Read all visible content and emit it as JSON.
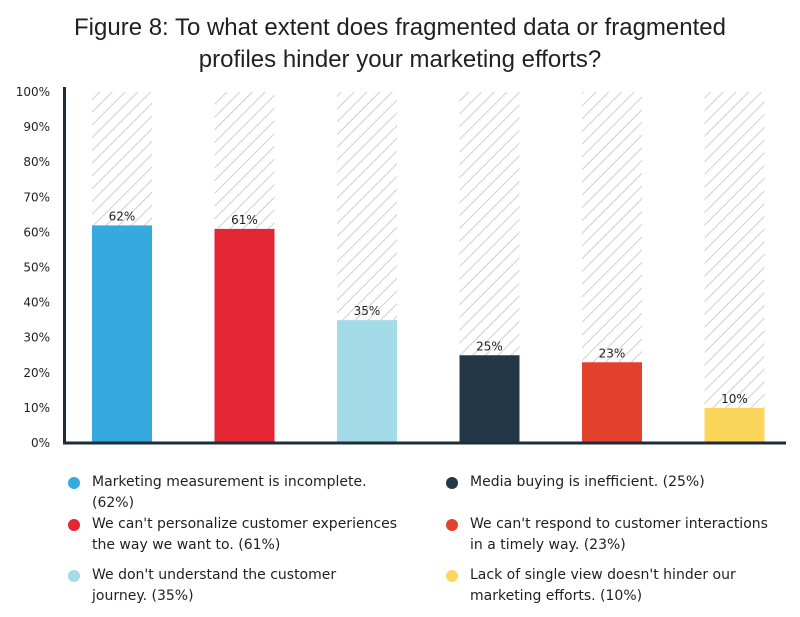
{
  "title": {
    "line1": "Figure 8: To what extent does fragmented data or fragmented",
    "line2": "profiles hinder your marketing efforts?"
  },
  "chart_data": {
    "type": "bar",
    "title": "Figure 8: To what extent does fragmented data or fragmented profiles hinder your marketing efforts?",
    "categories": [
      "Marketing measurement is incomplete.",
      "We can't personalize customer experiences the way we want to.",
      "We don't understand the customer journey.",
      "Media buying is inefficient.",
      "We can't respond to customer interactions in a timely way.",
      "Lack of single view doesn't hinder our marketing efforts."
    ],
    "values": [
      62,
      61,
      35,
      25,
      23,
      10
    ],
    "value_labels": [
      "62%",
      "61%",
      "35%",
      "25%",
      "23%",
      "10%"
    ],
    "colors": [
      "#36a9df",
      "#e32634",
      "#a3dbe8",
      "#233746",
      "#e2422d",
      "#fcd65a"
    ],
    "ylim": [
      0,
      100
    ],
    "yticks": [
      "0%",
      "10%",
      "20%",
      "30%",
      "40%",
      "50%",
      "60%",
      "70%",
      "80%",
      "90%",
      "100%"
    ],
    "xlabel": "",
    "ylabel": "",
    "grid": false,
    "legend_position": "bottom"
  },
  "legend": {
    "items": [
      {
        "line1": "Marketing measurement is incomplete. (62%)",
        "line2": "",
        "color": "#36a9df"
      },
      {
        "line1": "Media buying is inefficient. (25%)",
        "line2": "",
        "color": "#233746"
      },
      {
        "line1": "We can't personalize customer experiences",
        "line2": "the way we want to. (61%)",
        "color": "#e32634"
      },
      {
        "line1": "We can't respond to customer interactions",
        "line2": "in a timely way. (23%)",
        "color": "#e2422d"
      },
      {
        "line1": "We don't understand the customer",
        "line2": "journey. (35%)",
        "color": "#a3dbe8"
      },
      {
        "line1": "Lack of single view doesn't hinder our",
        "line2": "marketing efforts. (10%)",
        "color": "#fcd65a"
      }
    ]
  }
}
